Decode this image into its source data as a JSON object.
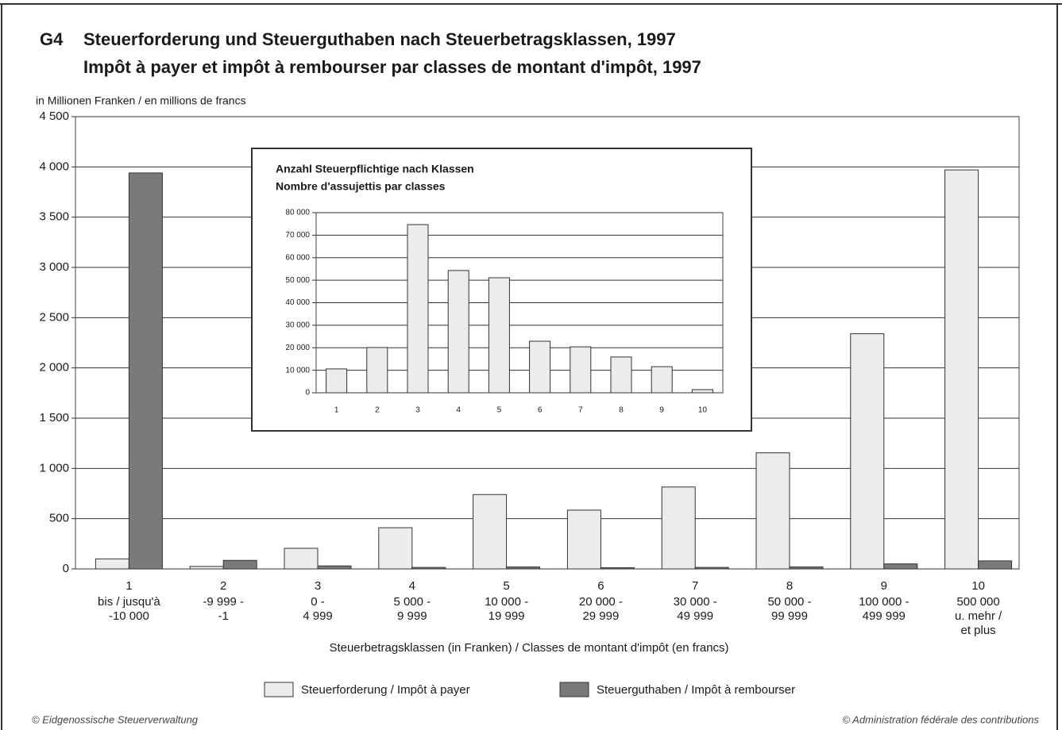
{
  "chart_data": [
    {
      "type": "bar",
      "number": "G4",
      "title": "Steuerforderung und Steuerguthaben nach Steuerbetragsklassen, 1997",
      "subtitle": "Impôt à payer et impôt à rembourser par classes de montant d'impôt, 1997",
      "ylabel": "in Millionen Franken / en millions de francs",
      "xlabel": "Steuerbetragsklassen (in Franken) / Classes de montant d'impôt (en francs)",
      "categories": [
        "1",
        "2",
        "3",
        "4",
        "5",
        "6",
        "7",
        "8",
        "9",
        "10"
      ],
      "category_ranges": [
        [
          "bis / jusqu'à",
          "-10 000"
        ],
        [
          "-9 999 -",
          "-1"
        ],
        [
          "0 -",
          "4 999"
        ],
        [
          "5 000 -",
          "9 999"
        ],
        [
          "10 000 -",
          "19 999"
        ],
        [
          "20 000 -",
          "29 999"
        ],
        [
          "30 000 -",
          "49 999"
        ],
        [
          "50 000 -",
          "99 999"
        ],
        [
          "100 000 -",
          "499 999"
        ],
        [
          "500 000",
          "u. mehr /",
          "et plus"
        ]
      ],
      "series": [
        {
          "name": "Steuerforderung / Impôt à payer",
          "color": "#ececec",
          "values": [
            100,
            25,
            205,
            410,
            740,
            585,
            815,
            1155,
            2340,
            3970
          ]
        },
        {
          "name": "Steuerguthaben / Impôt à rembourser",
          "color": "#7a7a7a",
          "values": [
            3940,
            85,
            30,
            15,
            20,
            12,
            15,
            20,
            50,
            80
          ]
        }
      ],
      "ylim": [
        0,
        4500
      ],
      "yticks": [
        0,
        500,
        {
          "value": 1000,
          "label": "1 000"
        },
        {
          "value": 1500,
          "label": "1 500"
        },
        {
          "value": 2000,
          "label": "2 000"
        },
        {
          "value": 2500,
          "label": "2 500"
        },
        {
          "value": 3000,
          "label": "3 000"
        },
        {
          "value": 3500,
          "label": "3 500"
        },
        {
          "value": 4000,
          "label": "4 000"
        },
        {
          "value": 4500,
          "label": "4 500"
        }
      ],
      "grid": true,
      "legend": "bottom",
      "footer_left": "© Eidgenossische Steuerverwaltung",
      "footer_right": "© Administration fédérale des contributions"
    },
    {
      "type": "bar",
      "title": "Anzahl Steuerpflichtige nach Klassen",
      "subtitle": "Nombre d'assujettis par classes",
      "categories": [
        "1",
        "2",
        "3",
        "4",
        "5",
        "6",
        "7",
        "8",
        "9",
        "10"
      ],
      "values": [
        10600,
        20100,
        74700,
        54300,
        51100,
        22900,
        20400,
        15900,
        11600,
        1400
      ],
      "color": "#ececec",
      "ylim": [
        0,
        80000
      ],
      "yticks": [
        0,
        {
          "value": 10000,
          "label": "10 000"
        },
        {
          "value": 20000,
          "label": "20 000"
        },
        {
          "value": 30000,
          "label": "30 000"
        },
        {
          "value": 40000,
          "label": "40 000"
        },
        {
          "value": 50000,
          "label": "50 000"
        },
        {
          "value": 60000,
          "label": "60 000"
        },
        {
          "value": 70000,
          "label": "70 000"
        },
        {
          "value": 80000,
          "label": "80 000"
        }
      ],
      "grid": true
    }
  ]
}
